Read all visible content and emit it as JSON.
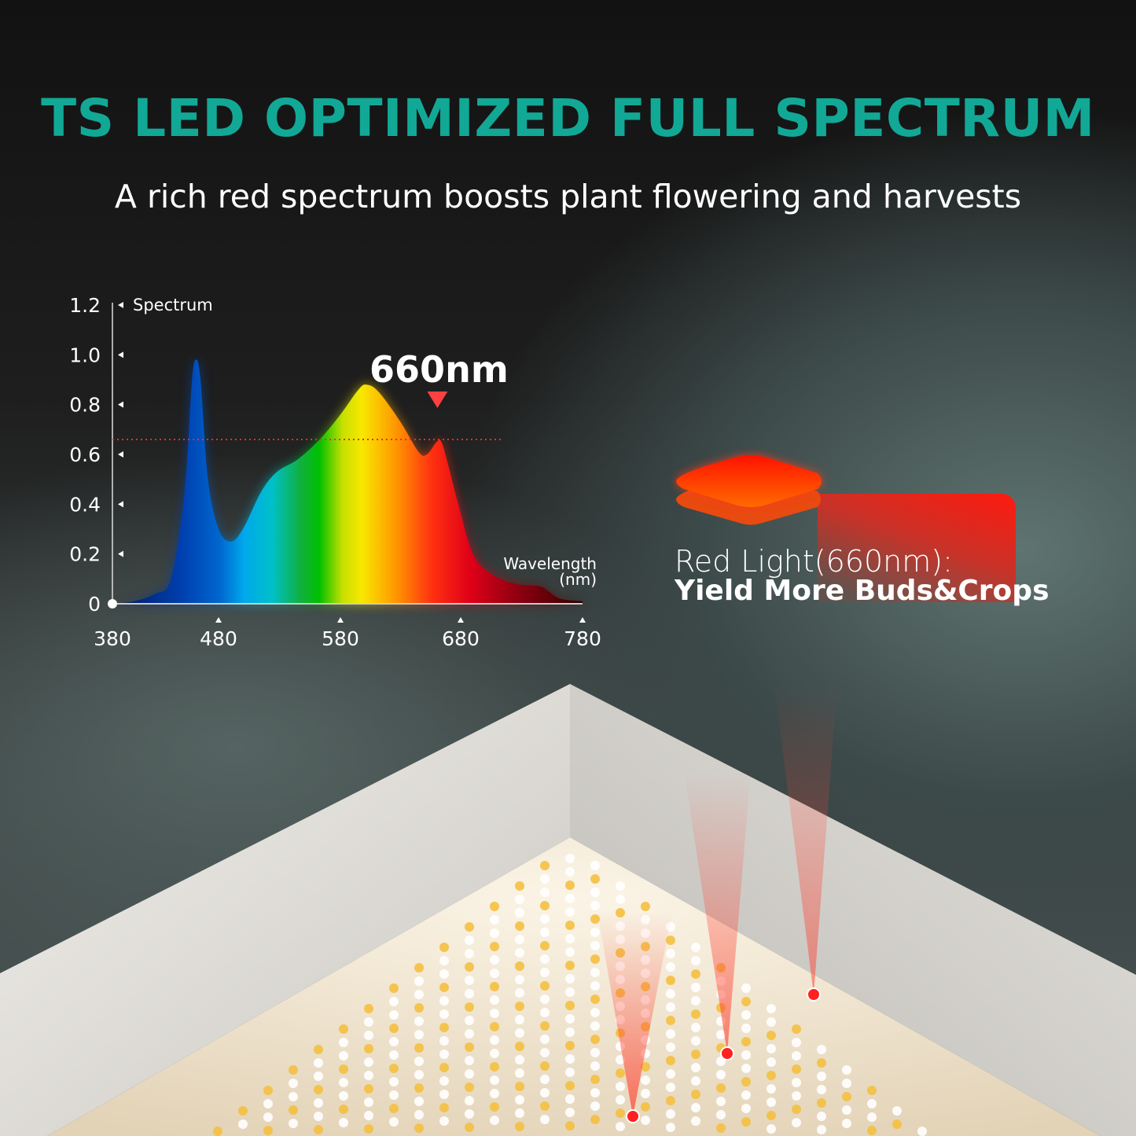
{
  "header": {
    "title": "TS LED OPTIMIZED FULL SPECTRUM",
    "subtitle": "A rich red spectrum boosts plant flowering and harvests"
  },
  "callout": {
    "line1": "Red Light(660nm):",
    "line2": "Yield More Buds&Crops",
    "color": "#ff1a0f"
  },
  "chart_data": {
    "type": "area",
    "title": "",
    "ylabel": "Spectrum",
    "xlabel": "Wavelength\n(nm)",
    "xlabel_line1": "Wavelength",
    "xlabel_line2": "(nm)",
    "x_ticks": [
      380,
      480,
      580,
      680,
      780
    ],
    "y_ticks": [
      "0",
      "0.2",
      "0.4",
      "0.6",
      "0.8",
      "1.0",
      "1.2"
    ],
    "xlim": [
      380,
      780
    ],
    "ylim": [
      0,
      1.2
    ],
    "annotation": "660nm",
    "annotation_x": 660,
    "reference_line_y": 0.66,
    "fill": "visible spectrum gradient",
    "points": [
      [
        380,
        0
      ],
      [
        400,
        0.01
      ],
      [
        420,
        0.04
      ],
      [
        435,
        0.1
      ],
      [
        448,
        0.45
      ],
      [
        455,
        0.9
      ],
      [
        459,
        0.98
      ],
      [
        463,
        0.9
      ],
      [
        470,
        0.5
      ],
      [
        480,
        0.3
      ],
      [
        490,
        0.25
      ],
      [
        500,
        0.3
      ],
      [
        515,
        0.45
      ],
      [
        528,
        0.53
      ],
      [
        545,
        0.58
      ],
      [
        563,
        0.66
      ],
      [
        580,
        0.76
      ],
      [
        595,
        0.86
      ],
      [
        602,
        0.88
      ],
      [
        612,
        0.85
      ],
      [
        630,
        0.73
      ],
      [
        645,
        0.61
      ],
      [
        652,
        0.6
      ],
      [
        660,
        0.65
      ],
      [
        664,
        0.65
      ],
      [
        670,
        0.55
      ],
      [
        678,
        0.4
      ],
      [
        690,
        0.2
      ],
      [
        705,
        0.12
      ],
      [
        725,
        0.08
      ],
      [
        745,
        0.07
      ],
      [
        752,
        0.05
      ],
      [
        762,
        0.02
      ],
      [
        780,
        0.01
      ]
    ]
  }
}
